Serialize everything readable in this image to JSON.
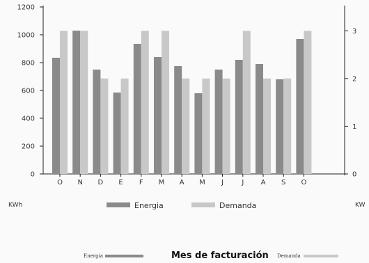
{
  "chart_data": {
    "type": "bar",
    "categories": [
      "O",
      "N",
      "D",
      "E",
      "F",
      "M",
      "A",
      "M",
      "J",
      "J",
      "A",
      "S",
      "O"
    ],
    "series": [
      {
        "name": "Energia",
        "axis": "left",
        "color": "#8a8a8a",
        "values": [
          835,
          1030,
          750,
          585,
          935,
          840,
          775,
          580,
          750,
          820,
          790,
          680,
          970
        ]
      },
      {
        "name": "Demanda",
        "axis": "right",
        "color": "#c8c8c8",
        "values": [
          3.0,
          3.0,
          2.0,
          2.0,
          3.0,
          3.0,
          2.0,
          2.0,
          2.0,
          3.0,
          2.0,
          2.0,
          3.0
        ]
      }
    ],
    "left_axis": {
      "ylim": [
        0,
        1200
      ],
      "ticks": [
        0,
        200,
        400,
        600,
        800,
        1000,
        1200
      ],
      "unit_label": "KWh"
    },
    "right_axis": {
      "ylim": [
        0,
        3.5
      ],
      "ticks": [
        0,
        1,
        2,
        3
      ],
      "unit_label": "KW"
    },
    "legend": {
      "placement": "bottom",
      "items": [
        "Energia",
        "Demanda"
      ]
    },
    "grid": false
  },
  "footer": {
    "title": "Mes de facturación",
    "left_label": "Energia",
    "right_label": "Demanda"
  }
}
